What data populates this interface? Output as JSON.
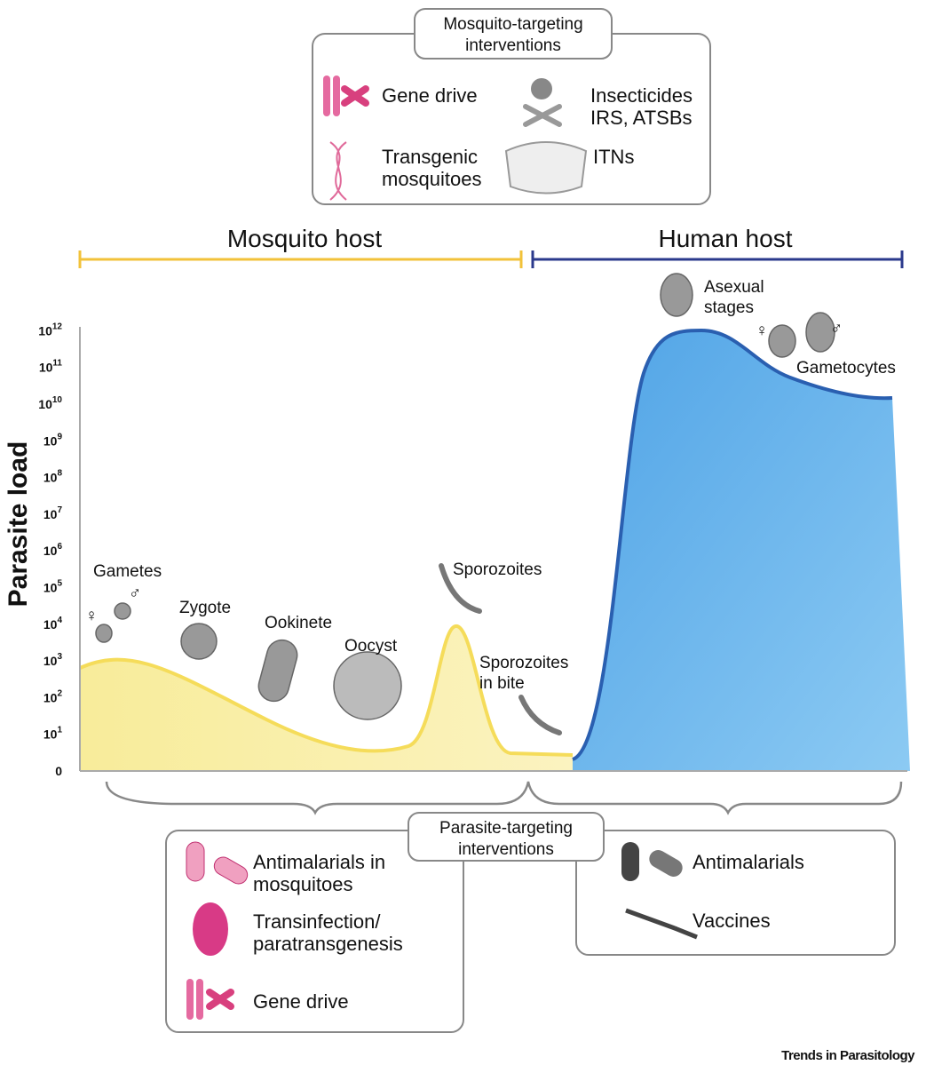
{
  "top_box": {
    "title": [
      "Mosquito-targeting",
      "interventions"
    ],
    "items": [
      {
        "label": [
          "Gene drive"
        ]
      },
      {
        "label": [
          "Insecticides",
          "IRS, ATSBs"
        ]
      },
      {
        "label": [
          "Transgenic",
          "mosquitoes"
        ]
      },
      {
        "label": [
          "ITNs"
        ]
      }
    ]
  },
  "hosts": [
    "Mosquito host",
    "Human host"
  ],
  "y_axis": {
    "label": "Parasite load",
    "ticks": [
      {
        "base": "0"
      },
      {
        "base": "10",
        "exponent": "1"
      },
      {
        "base": "10",
        "exponent": "2"
      },
      {
        "base": "10",
        "exponent": "3"
      },
      {
        "base": "10",
        "exponent": "4"
      },
      {
        "base": "10",
        "exponent": "5"
      },
      {
        "base": "10",
        "exponent": "6"
      },
      {
        "base": "10",
        "exponent": "7"
      },
      {
        "base": "10",
        "exponent": "8"
      },
      {
        "base": "10",
        "exponent": "9"
      },
      {
        "base": "10",
        "exponent": "10"
      },
      {
        "base": "10",
        "exponent": "11"
      },
      {
        "base": "10",
        "exponent": "12"
      }
    ]
  },
  "stages": [
    {
      "label": [
        "Gametes"
      ]
    },
    {
      "label": [
        "Zygote"
      ]
    },
    {
      "label": [
        "Ookinete"
      ]
    },
    {
      "label": [
        "Oocyst"
      ]
    },
    {
      "label": [
        "Sporozoites"
      ]
    },
    {
      "label": [
        "Sporozoites",
        "in bite"
      ]
    },
    {
      "label": [
        "Asexual",
        "stages"
      ]
    },
    {
      "label": [
        "Gametocytes"
      ]
    }
  ],
  "sex_symbols": [
    "♀",
    "♂",
    "♀",
    "♂"
  ],
  "bottom_box": {
    "title": [
      "Parasite-targeting",
      "interventions"
    ],
    "mosquito_items": [
      {
        "label": [
          "Antimalarials in",
          "mosquitoes"
        ]
      },
      {
        "label": [
          "Transinfection/",
          "paratransgenesis"
        ]
      },
      {
        "label": [
          "Gene drive"
        ]
      }
    ],
    "human_items": [
      {
        "label": [
          "Antimalarials"
        ]
      },
      {
        "label": [
          "Vaccines"
        ]
      }
    ]
  },
  "footer": "Trends in Parasitology"
}
